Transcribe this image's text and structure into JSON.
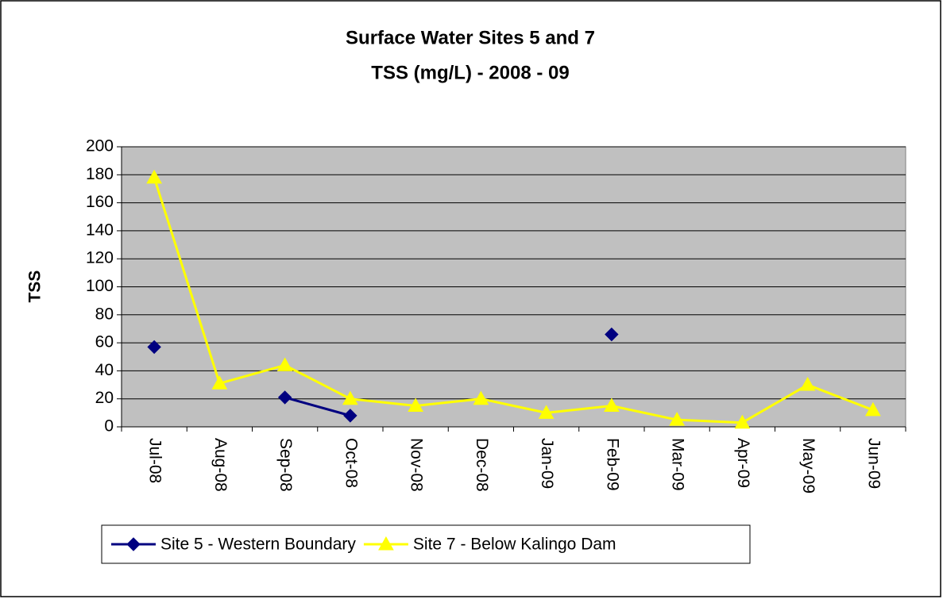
{
  "chart_data": {
    "type": "line",
    "title": "Surface Water Sites 5 and 7",
    "subtitle": "TSS (mg/L) - 2008 - 09",
    "y_label": "TSS",
    "categories": [
      "Jul-08",
      "Aug-08",
      "Sep-08",
      "Oct-08",
      "Nov-08",
      "Dec-08",
      "Jan-09",
      "Feb-09",
      "Mar-09",
      "Apr-09",
      "May-09",
      "Jun-09"
    ],
    "series": [
      {
        "name": "Site 5 - Western Boundary",
        "color": "#000080",
        "marker": "diamond",
        "values": [
          57,
          null,
          21,
          8,
          null,
          null,
          null,
          66,
          null,
          null,
          null,
          null
        ]
      },
      {
        "name": "Site 7 - Below Kalingo Dam",
        "color": "#ffff00",
        "marker": "triangle",
        "values": [
          178,
          31,
          44,
          20,
          15,
          20,
          10,
          15,
          5,
          3,
          30,
          12
        ]
      }
    ],
    "ylim": [
      0,
      200
    ],
    "yticks": [
      0,
      20,
      40,
      60,
      80,
      100,
      120,
      140,
      160,
      180,
      200
    ],
    "grid": true,
    "legend": "bottom"
  }
}
